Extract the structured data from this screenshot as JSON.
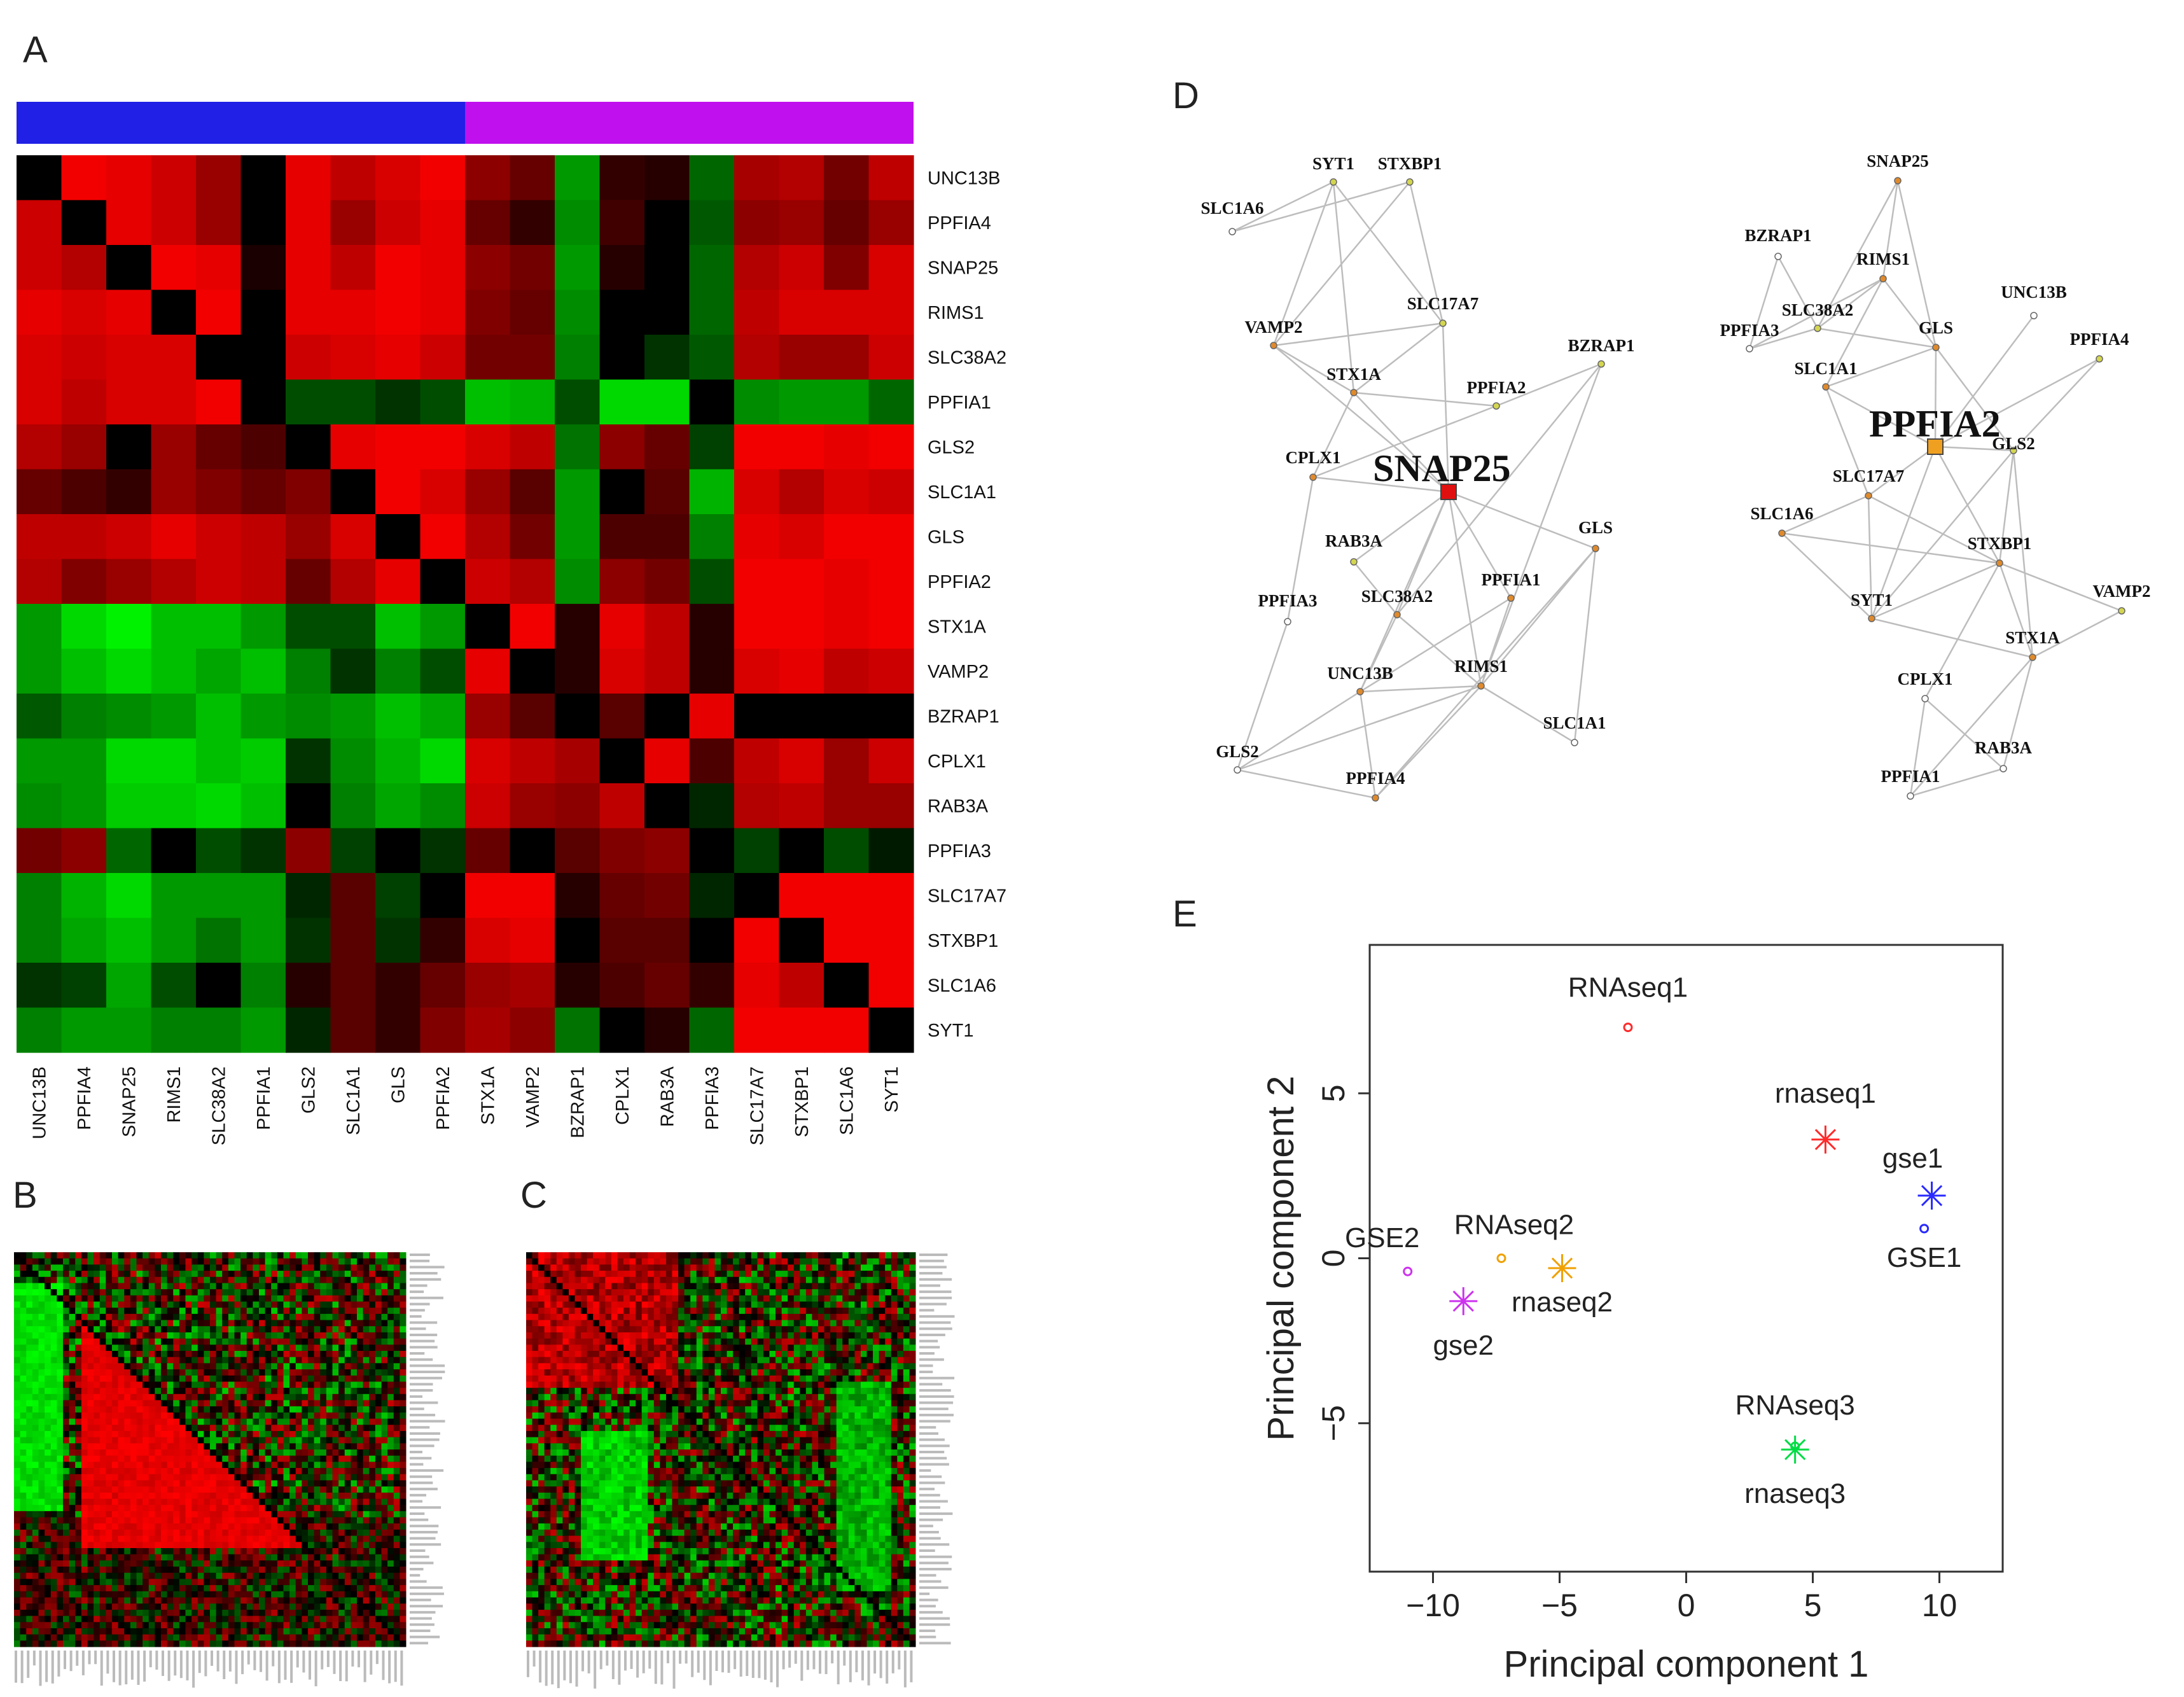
{
  "panels": {
    "a": "A",
    "b": "B",
    "c": "C",
    "d": "D",
    "e": "E"
  },
  "heatmap": {
    "genes": [
      "UNC13B",
      "PPFIA4",
      "SNAP25",
      "RIMS1",
      "SLC38A2",
      "PPFIA1",
      "GLS2",
      "SLC1A1",
      "GLS",
      "PPFIA2",
      "STX1A",
      "VAMP2",
      "BZRAP1",
      "CPLX1",
      "RAB3A",
      "PPFIA3",
      "SLC17A7",
      "STXBP1",
      "SLC1A6",
      "SYT1"
    ],
    "group_colors": [
      "#2020e6",
      "#c010ee"
    ],
    "group_sizes": [
      10,
      10
    ],
    "color_low": "#00ff00",
    "color_mid": "#000000",
    "color_high": "#ff0000",
    "matrix": [
      [
        0,
        0.95,
        0.9,
        0.8,
        0.6,
        0,
        0.9,
        0.75,
        0.85,
        0.95,
        0.55,
        0.4,
        -0.6,
        0.2,
        0.15,
        -0.4,
        0.65,
        0.7,
        0.45,
        0.75
      ],
      [
        0.8,
        0,
        0.9,
        0.8,
        0.6,
        0,
        0.9,
        0.6,
        0.8,
        0.9,
        0.4,
        0.2,
        -0.55,
        0.25,
        0,
        -0.35,
        0.55,
        0.6,
        0.4,
        0.6
      ],
      [
        0.8,
        0.7,
        0,
        0.95,
        0.9,
        0.1,
        0.9,
        0.75,
        0.95,
        0.9,
        0.55,
        0.45,
        -0.6,
        0.15,
        0,
        -0.4,
        0.7,
        0.8,
        0.5,
        0.85
      ],
      [
        0.9,
        0.85,
        0.9,
        0,
        0.95,
        0,
        0.9,
        0.9,
        0.95,
        0.9,
        0.5,
        0.4,
        -0.55,
        0,
        0,
        -0.4,
        0.75,
        0.85,
        0.85,
        0.85
      ],
      [
        0.85,
        0.8,
        0.85,
        0.85,
        0,
        0,
        0.8,
        0.85,
        0.9,
        0.8,
        0.45,
        0.45,
        -0.5,
        0,
        -0.2,
        -0.35,
        0.7,
        0.6,
        0.6,
        0.8
      ],
      [
        0.85,
        0.75,
        0.85,
        0.85,
        0.95,
        0,
        -0.3,
        -0.3,
        -0.2,
        -0.3,
        -0.75,
        -0.7,
        -0.3,
        -0.85,
        -0.85,
        0,
        -0.55,
        -0.6,
        -0.6,
        -0.4
      ],
      [
        0.7,
        0.6,
        0,
        0.6,
        0.4,
        0.3,
        0,
        0.9,
        0.95,
        0.95,
        0.85,
        0.75,
        -0.45,
        0.55,
        0.4,
        -0.25,
        0.95,
        0.95,
        0.9,
        0.95
      ],
      [
        0.4,
        0.3,
        0.2,
        0.6,
        0.5,
        0.4,
        0.5,
        0,
        0.95,
        0.85,
        0.6,
        0.35,
        -0.6,
        0,
        0.35,
        -0.7,
        0.85,
        0.7,
        0.85,
        0.8
      ],
      [
        0.75,
        0.75,
        0.8,
        0.9,
        0.8,
        0.75,
        0.6,
        0.85,
        0,
        0.95,
        0.7,
        0.45,
        -0.6,
        0.3,
        0.3,
        -0.5,
        0.9,
        0.85,
        0.95,
        0.95
      ],
      [
        0.7,
        0.5,
        0.6,
        0.7,
        0.8,
        0.75,
        0.4,
        0.7,
        0.9,
        0,
        0.8,
        0.7,
        -0.55,
        0.55,
        0.45,
        -0.3,
        0.95,
        0.95,
        0.9,
        0.95
      ],
      [
        -0.6,
        -0.85,
        -0.95,
        -0.75,
        -0.75,
        -0.6,
        -0.3,
        -0.3,
        -0.75,
        -0.6,
        0,
        0.95,
        0.15,
        0.9,
        0.75,
        0.15,
        0.95,
        0.95,
        0.9,
        0.95
      ],
      [
        -0.6,
        -0.75,
        -0.85,
        -0.75,
        -0.65,
        -0.75,
        -0.5,
        -0.2,
        -0.5,
        -0.3,
        0.9,
        0,
        0.15,
        0.85,
        0.75,
        0.15,
        0.85,
        0.9,
        0.75,
        0.8
      ],
      [
        -0.35,
        -0.5,
        -0.55,
        -0.6,
        -0.75,
        -0.6,
        -0.55,
        -0.6,
        -0.75,
        -0.65,
        0.6,
        0.35,
        0,
        0.35,
        0,
        0.9,
        0,
        0,
        0,
        0
      ],
      [
        -0.6,
        -0.6,
        -0.85,
        -0.85,
        -0.75,
        -0.8,
        -0.2,
        -0.55,
        -0.7,
        -0.85,
        0.85,
        0.75,
        0.65,
        0,
        0.9,
        0.3,
        0.75,
        0.85,
        0.6,
        0.8
      ],
      [
        -0.55,
        -0.6,
        -0.8,
        -0.8,
        -0.85,
        -0.75,
        0,
        -0.5,
        -0.65,
        -0.55,
        0.8,
        0.6,
        0.55,
        0.75,
        0,
        -0.15,
        0.7,
        0.75,
        0.6,
        0.6
      ],
      [
        0.45,
        0.55,
        -0.4,
        0,
        -0.3,
        -0.2,
        0.55,
        -0.25,
        0,
        -0.2,
        0.4,
        0,
        0.35,
        0.5,
        0.55,
        0,
        -0.25,
        0,
        -0.3,
        -0.1
      ],
      [
        -0.5,
        -0.7,
        -0.85,
        -0.6,
        -0.6,
        -0.6,
        -0.15,
        0.35,
        -0.25,
        0,
        0.95,
        0.95,
        0.15,
        0.4,
        0.45,
        -0.15,
        0,
        0.95,
        0.95,
        0.95
      ],
      [
        -0.5,
        -0.65,
        -0.75,
        -0.6,
        -0.45,
        -0.6,
        -0.2,
        0.35,
        -0.2,
        0.2,
        0.85,
        0.9,
        0,
        0.35,
        0.35,
        0,
        0.95,
        0,
        0.95,
        0.95
      ],
      [
        -0.2,
        -0.25,
        -0.65,
        -0.3,
        0,
        -0.5,
        0.15,
        0.35,
        0.2,
        0.4,
        0.6,
        0.65,
        0.15,
        0.3,
        0.4,
        0.2,
        0.9,
        0.75,
        0,
        0.95
      ],
      [
        -0.5,
        -0.6,
        -0.6,
        -0.5,
        -0.5,
        -0.6,
        -0.15,
        0.35,
        0.2,
        0.5,
        0.65,
        0.55,
        -0.45,
        0,
        0.15,
        -0.4,
        0.95,
        0.95,
        0.95,
        0
      ]
    ]
  },
  "thumb_b": {
    "label": "B"
  },
  "thumb_c": {
    "label": "C"
  },
  "network_left": {
    "hub": "SNAP25",
    "nodes": [
      "SYT1",
      "STXBP1",
      "SLC1A6",
      "SLC17A7",
      "VAMP2",
      "BZRAP1",
      "STX1A",
      "PPFIA2",
      "CPLX1",
      "SNAP25",
      "RAB3A",
      "GLS",
      "PPFIA1",
      "PPFIA3",
      "SLC38A2",
      "UNC13B",
      "RIMS1",
      "SLC1A1",
      "GLS2",
      "PPFIA4"
    ],
    "node_colors": {
      "SYT1": "#d4d650",
      "STXBP1": "#d4d650",
      "SLC1A6": "#ffffff",
      "SLC17A7": "#d4d650",
      "VAMP2": "#e08a2c",
      "BZRAP1": "#d4d650",
      "STX1A": "#e08a2c",
      "PPFIA2": "#d4d650",
      "CPLX1": "#e08a2c",
      "SNAP25": "#e01010",
      "RAB3A": "#d4d650",
      "GLS": "#e08a2c",
      "PPFIA1": "#e08a2c",
      "PPFIA3": "#ffffff",
      "SLC38A2": "#e08a2c",
      "UNC13B": "#e08a2c",
      "RIMS1": "#e08a2c",
      "SLC1A1": "#ffffff",
      "GLS2": "#ffffff",
      "PPFIA4": "#e08a2c"
    },
    "edges": [
      [
        "SYT1",
        "SLC1A6"
      ],
      [
        "SYT1",
        "VAMP2"
      ],
      [
        "SYT1",
        "STX1A"
      ],
      [
        "SYT1",
        "SLC17A7"
      ],
      [
        "STXBP1",
        "SLC1A6"
      ],
      [
        "STXBP1",
        "VAMP2"
      ],
      [
        "STXBP1",
        "SLC17A7"
      ],
      [
        "SLC17A7",
        "VAMP2"
      ],
      [
        "SLC17A7",
        "STX1A"
      ],
      [
        "SLC17A7",
        "SNAP25"
      ],
      [
        "VAMP2",
        "STX1A"
      ],
      [
        "VAMP2",
        "SNAP25"
      ],
      [
        "STX1A",
        "CPLX1"
      ],
      [
        "STX1A",
        "PPFIA2"
      ],
      [
        "STX1A",
        "SNAP25"
      ],
      [
        "CPLX1",
        "SNAP25"
      ],
      [
        "CPLX1",
        "PPFIA3"
      ],
      [
        "CPLX1",
        "PPFIA2"
      ],
      [
        "PPFIA2",
        "BZRAP1"
      ],
      [
        "BZRAP1",
        "SLC38A2"
      ],
      [
        "BZRAP1",
        "RIMS1"
      ],
      [
        "SNAP25",
        "GLS"
      ],
      [
        "SNAP25",
        "PPFIA1"
      ],
      [
        "SNAP25",
        "SLC38A2"
      ],
      [
        "SNAP25",
        "UNC13B"
      ],
      [
        "SNAP25",
        "RIMS1"
      ],
      [
        "SNAP25",
        "RAB3A"
      ],
      [
        "RAB3A",
        "SLC38A2"
      ],
      [
        "SLC38A2",
        "RIMS1"
      ],
      [
        "SLC38A2",
        "UNC13B"
      ],
      [
        "PPFIA1",
        "UNC13B"
      ],
      [
        "PPFIA1",
        "RIMS1"
      ],
      [
        "GLS",
        "RIMS1"
      ],
      [
        "GLS",
        "SLC1A1"
      ],
      [
        "GLS",
        "PPFIA4"
      ],
      [
        "UNC13B",
        "RIMS1"
      ],
      [
        "UNC13B",
        "GLS2"
      ],
      [
        "UNC13B",
        "PPFIA4"
      ],
      [
        "RIMS1",
        "SLC1A1"
      ],
      [
        "RIMS1",
        "GLS2"
      ],
      [
        "RIMS1",
        "PPFIA4"
      ],
      [
        "PPFIA3",
        "GLS2"
      ],
      [
        "GLS2",
        "PPFIA4"
      ]
    ]
  },
  "network_right": {
    "hub": "PPFIA2",
    "nodes": [
      "SNAP25",
      "BZRAP1",
      "RIMS1",
      "UNC13B",
      "SLC38A2",
      "GLS",
      "PPFIA4",
      "PPFIA3",
      "SLC1A1",
      "PPFIA2",
      "GLS2",
      "SLC17A7",
      "SLC1A6",
      "STXBP1",
      "VAMP2",
      "SYT1",
      "STX1A",
      "CPLX1",
      "RAB3A",
      "PPFIA1"
    ],
    "node_colors": {
      "SNAP25": "#e08a2c",
      "BZRAP1": "#ffffff",
      "RIMS1": "#e08a2c",
      "UNC13B": "#ffffff",
      "SLC38A2": "#d4d650",
      "GLS": "#e08a2c",
      "PPFIA4": "#d4d650",
      "PPFIA3": "#ffffff",
      "SLC1A1": "#e08a2c",
      "PPFIA2": "#f0a020",
      "GLS2": "#d4d650",
      "SLC17A7": "#e08a2c",
      "SLC1A6": "#e08a2c",
      "STXBP1": "#e08a2c",
      "VAMP2": "#d4d650",
      "SYT1": "#e08a2c",
      "STX1A": "#e08a2c",
      "CPLX1": "#ffffff",
      "RAB3A": "#ffffff",
      "PPFIA1": "#ffffff"
    },
    "edges": [
      [
        "SNAP25",
        "RIMS1"
      ],
      [
        "SNAP25",
        "SLC38A2"
      ],
      [
        "SNAP25",
        "GLS"
      ],
      [
        "BZRAP1",
        "SLC38A2"
      ],
      [
        "BZRAP1",
        "PPFIA3"
      ],
      [
        "RIMS1",
        "SLC38A2"
      ],
      [
        "RIMS1",
        "GLS"
      ],
      [
        "RIMS1",
        "SLC1A1"
      ],
      [
        "RIMS1",
        "PPFIA3"
      ],
      [
        "SLC38A2",
        "GLS"
      ],
      [
        "SLC38A2",
        "PPFIA3"
      ],
      [
        "GLS",
        "PPFIA2"
      ],
      [
        "GLS",
        "GLS2"
      ],
      [
        "GLS",
        "SLC1A1"
      ],
      [
        "UNC13B",
        "PPFIA2"
      ],
      [
        "PPFIA4",
        "GLS2"
      ],
      [
        "PPFIA4",
        "PPFIA2"
      ],
      [
        "SLC1A1",
        "PPFIA2"
      ],
      [
        "SLC1A1",
        "SLC17A7"
      ],
      [
        "PPFIA2",
        "GLS2"
      ],
      [
        "PPFIA2",
        "SLC17A7"
      ],
      [
        "PPFIA2",
        "STXBP1"
      ],
      [
        "PPFIA2",
        "SYT1"
      ],
      [
        "GLS2",
        "STXBP1"
      ],
      [
        "GLS2",
        "SYT1"
      ],
      [
        "GLS2",
        "STX1A"
      ],
      [
        "SLC17A7",
        "SLC1A6"
      ],
      [
        "SLC17A7",
        "SYT1"
      ],
      [
        "SLC17A7",
        "STXBP1"
      ],
      [
        "SLC1A6",
        "STXBP1"
      ],
      [
        "SLC1A6",
        "SYT1"
      ],
      [
        "STXBP1",
        "SYT1"
      ],
      [
        "STXBP1",
        "VAMP2"
      ],
      [
        "STXBP1",
        "STX1A"
      ],
      [
        "STXBP1",
        "CPLX1"
      ],
      [
        "SYT1",
        "STX1A"
      ],
      [
        "STX1A",
        "VAMP2"
      ],
      [
        "STX1A",
        "RAB3A"
      ],
      [
        "STX1A",
        "PPFIA1"
      ],
      [
        "CPLX1",
        "RAB3A"
      ],
      [
        "CPLX1",
        "PPFIA1"
      ],
      [
        "RAB3A",
        "PPFIA1"
      ]
    ]
  },
  "chart_data": {
    "type": "scatter",
    "xlabel": "Principal component  1",
    "ylabel": "Principal component  2",
    "xlim": [
      -12.5,
      12.5
    ],
    "ylim": [
      -9.5,
      9.5
    ],
    "xticks": [
      -10,
      -5,
      0,
      5,
      10
    ],
    "yticks": [
      -5,
      0,
      5
    ],
    "xtick_labels": [
      "−10",
      "−5",
      "0",
      "5",
      "10"
    ],
    "ytick_labels": [
      "−5",
      "0",
      "5"
    ],
    "points": [
      {
        "label": "RNAseq1",
        "x": -2.3,
        "y": 7.0,
        "marker": "circle",
        "color": "#ff2a2a"
      },
      {
        "label": "rnaseq1",
        "x": 5.5,
        "y": 3.6,
        "marker": "star",
        "color": "#ff2a2a"
      },
      {
        "label": "gse1",
        "x": 9.7,
        "y": 1.9,
        "marker": "star",
        "color": "#2a2aff"
      },
      {
        "label": "GSE1",
        "x": 9.4,
        "y": 0.9,
        "marker": "circle",
        "color": "#2a2aff"
      },
      {
        "label": "GSE2",
        "x": -11.0,
        "y": -0.4,
        "marker": "circle",
        "color": "#cc33ee"
      },
      {
        "label": "gse2",
        "x": -8.8,
        "y": -1.3,
        "marker": "star",
        "color": "#cc33ee"
      },
      {
        "label": "RNAseq2",
        "x": -7.3,
        "y": 0.0,
        "marker": "circle",
        "color": "#f0a000"
      },
      {
        "label": "rnaseq2",
        "x": -4.9,
        "y": -0.3,
        "marker": "star",
        "color": "#f0a000"
      },
      {
        "label": "RNAseq3",
        "x": 4.3,
        "y": -5.7,
        "marker": "circle",
        "color": "#00dd44"
      },
      {
        "label": "rnaseq3",
        "x": 4.3,
        "y": -5.8,
        "marker": "star",
        "color": "#00dd44"
      }
    ]
  }
}
